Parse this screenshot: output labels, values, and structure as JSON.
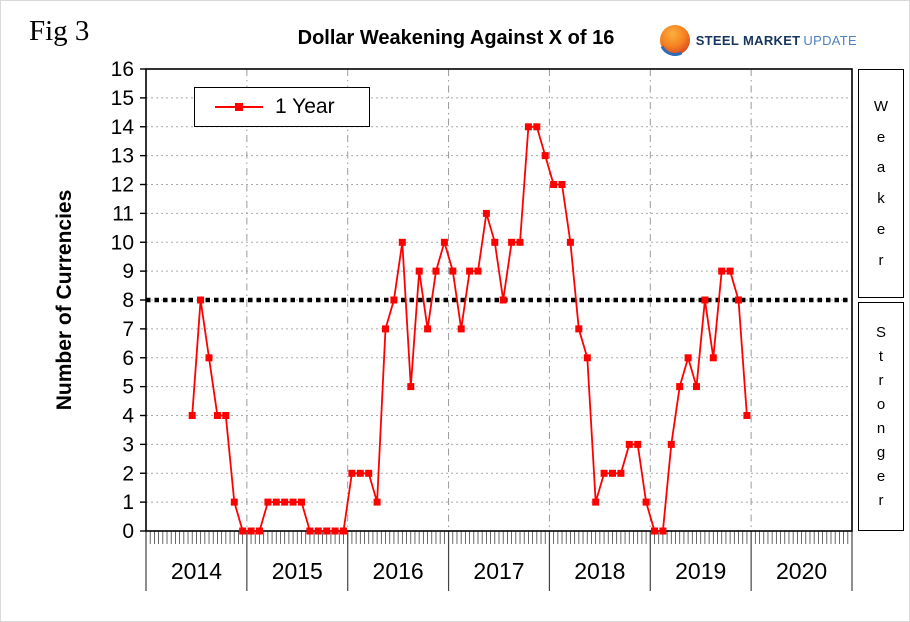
{
  "figure_label": "Fig 3",
  "title": "Dollar Weakening Against X of 16",
  "logo": {
    "steel": "STEEL",
    "market": "MARKET",
    "update": "UPDATE",
    "sphere_colors": [
      "#fbb040",
      "#e25822",
      "#2b6cb8"
    ]
  },
  "legend": {
    "label": "1 Year"
  },
  "y_axis": {
    "label": "Number of Currencies",
    "min": 0,
    "max": 16,
    "tick_step": 1
  },
  "x_axis": {
    "years": [
      "2014",
      "2015",
      "2016",
      "2017",
      "2018",
      "2019",
      "2020"
    ]
  },
  "side_labels": {
    "upper": "Weaker",
    "lower": "Stronger"
  },
  "threshold": {
    "value": 8
  },
  "chart_data": {
    "type": "line",
    "series_name": "1 Year",
    "start_month": "2014-06",
    "end_month": "2019-12",
    "interval": "monthly",
    "values": [
      4,
      8,
      6,
      4,
      4,
      1,
      0,
      0,
      0,
      1,
      1,
      1,
      1,
      1,
      0,
      0,
      0,
      0,
      0,
      2,
      2,
      2,
      1,
      7,
      8,
      10,
      5,
      9,
      7,
      9,
      10,
      9,
      7,
      9,
      9,
      11,
      10,
      8,
      10,
      10,
      14,
      14,
      13,
      12,
      12,
      10,
      7,
      6,
      1,
      2,
      2,
      2,
      3,
      3,
      1,
      0,
      0,
      3,
      5,
      6,
      5,
      8,
      6,
      9,
      9,
      8,
      4
    ],
    "ylim": [
      0,
      16
    ],
    "x_years": [
      2014,
      2020
    ],
    "line_color": "#ff0000",
    "marker": "square",
    "reference_line_y": 8,
    "grid": "horizontal-dotted, vertical-dashdot-at-year-boundaries",
    "legend_position": "top-left-inside",
    "title": "Dollar Weakening Against X of 16",
    "ylabel": "Number of Currencies"
  }
}
